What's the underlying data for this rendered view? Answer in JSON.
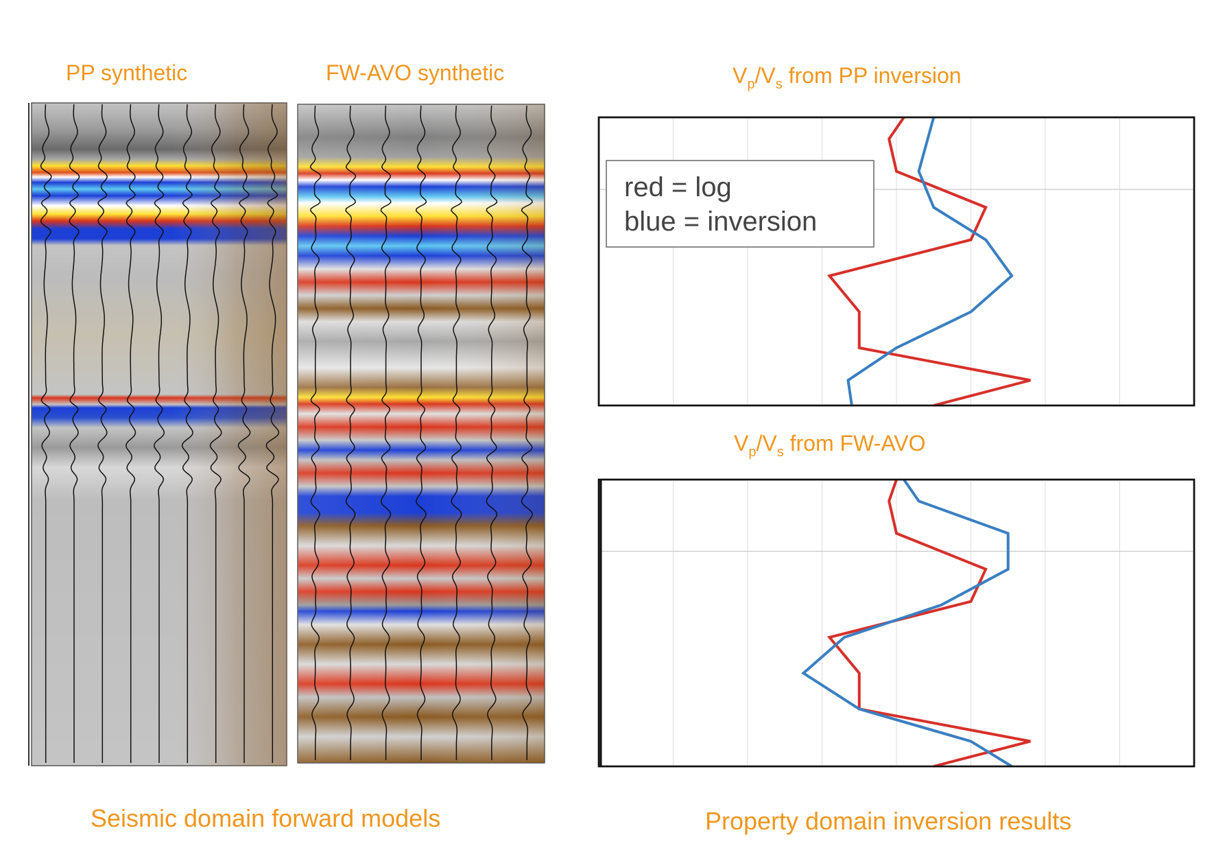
{
  "labels": {
    "pp_synthetic": "PP synthetic",
    "fwavo_synthetic": "FW-AVO synthetic",
    "vpvs_pp_title": {
      "v1": "V",
      "s1": "p",
      "mid": "/V",
      "s2": "s",
      "rest": " from PP inversion"
    },
    "vpvs_fw_title": {
      "v1": "V",
      "s1": "p",
      "mid": "/V",
      "s2": "s",
      "rest": " from FW-AVO"
    },
    "seismic_caption": "Seismic domain forward models",
    "property_caption": "Property domain inversion results"
  },
  "legend": {
    "line1": "red = log",
    "line2": "blue = inversion"
  },
  "colors": {
    "label_orange": "#f0961e",
    "log_red": "#d7302a",
    "inversion_blue": "#3a7fc1",
    "seismic_yellow": "#ffe033",
    "seismic_red": "#d9351c",
    "seismic_blue": "#1c3fd6",
    "seismic_lightblue": "#5fc7f0",
    "seismic_brown": "#8a5a22",
    "seismic_gray": "#c4c4c4"
  },
  "chart_data": [
    {
      "type": "line",
      "title": "Vp/Vs from PP inversion",
      "grid": true,
      "xlim": [
        0,
        8
      ],
      "ylim": [
        0,
        8
      ],
      "series": [
        {
          "name": "log",
          "color": "#d7302a",
          "points": [
            [
              4.1,
              0
            ],
            [
              3.9,
              0.6
            ],
            [
              4.0,
              1.5
            ],
            [
              5.2,
              2.5
            ],
            [
              5.0,
              3.4
            ],
            [
              3.1,
              4.4
            ],
            [
              3.5,
              5.4
            ],
            [
              3.5,
              6.4
            ],
            [
              5.8,
              7.3
            ],
            [
              4.5,
              8
            ]
          ]
        },
        {
          "name": "inversion",
          "color": "#3a7fc1",
          "points": [
            [
              4.5,
              0
            ],
            [
              4.3,
              1.5
            ],
            [
              4.5,
              2.5
            ],
            [
              5.2,
              3.4
            ],
            [
              5.55,
              4.4
            ],
            [
              5.0,
              5.4
            ],
            [
              4.0,
              6.4
            ],
            [
              3.35,
              7.3
            ],
            [
              3.4,
              8
            ]
          ]
        }
      ]
    },
    {
      "type": "line",
      "title": "Vp/Vs from FW-AVO",
      "grid": true,
      "xlim": [
        0,
        8
      ],
      "ylim": [
        0,
        8
      ],
      "series": [
        {
          "name": "log",
          "color": "#d7302a",
          "points": [
            [
              4.0,
              0
            ],
            [
              3.9,
              0.6
            ],
            [
              4.0,
              1.5
            ],
            [
              5.2,
              2.5
            ],
            [
              5.0,
              3.4
            ],
            [
              3.1,
              4.4
            ],
            [
              3.5,
              5.4
            ],
            [
              3.5,
              6.4
            ],
            [
              5.8,
              7.3
            ],
            [
              4.5,
              8
            ]
          ]
        },
        {
          "name": "inversion",
          "color": "#3a7fc1",
          "points": [
            [
              4.1,
              0
            ],
            [
              4.3,
              0.6
            ],
            [
              5.5,
              1.5
            ],
            [
              5.5,
              2.5
            ],
            [
              4.6,
              3.5
            ],
            [
              3.3,
              4.4
            ],
            [
              2.75,
              5.4
            ],
            [
              3.5,
              6.4
            ],
            [
              5.0,
              7.3
            ],
            [
              5.55,
              8
            ]
          ]
        }
      ]
    }
  ]
}
